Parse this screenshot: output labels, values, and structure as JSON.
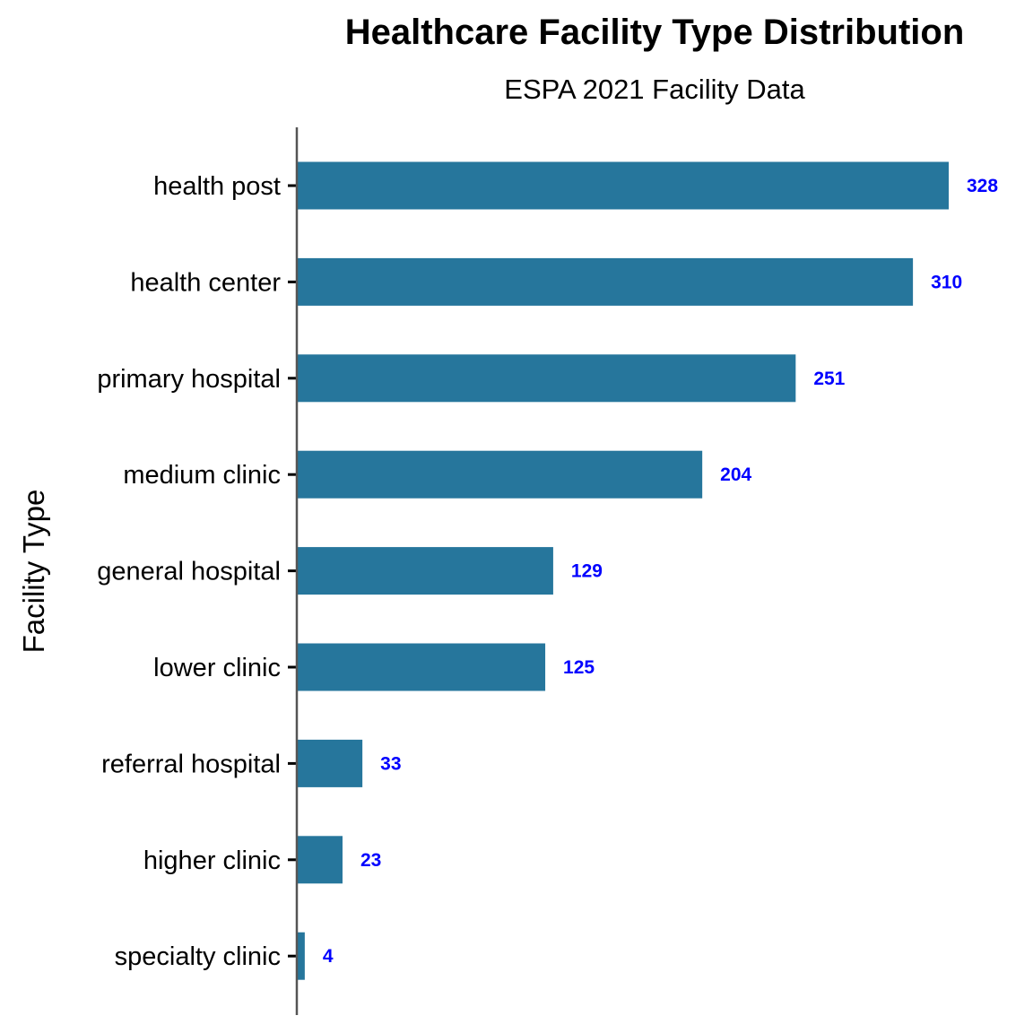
{
  "chart_data": {
    "type": "bar",
    "orientation": "horizontal",
    "title": "Healthcare Facility Type Distribution",
    "subtitle": "ESPA 2021 Facility Data",
    "xlabel": "",
    "ylabel": "Facility Type",
    "categories": [
      "health post",
      "health center",
      "primary hospital",
      "medium clinic",
      "general hospital",
      "lower clinic",
      "referral hospital",
      "higher clinic",
      "specialty clinic"
    ],
    "values": [
      328,
      310,
      251,
      204,
      129,
      125,
      33,
      23,
      4
    ],
    "data_labels": true,
    "grid": false,
    "colors": {
      "bar": "#26769C",
      "label": "#0000FF",
      "axis": "#555555"
    }
  }
}
